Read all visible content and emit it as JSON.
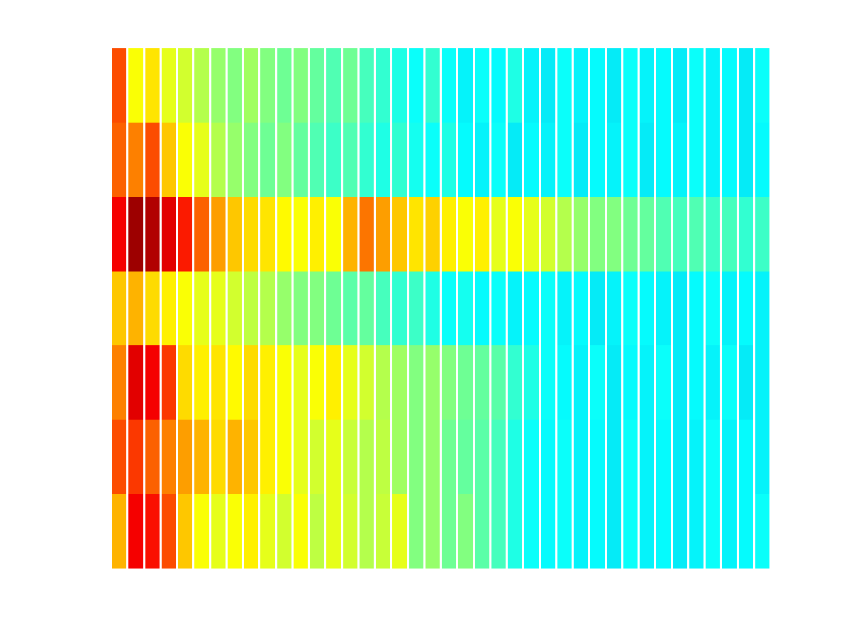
{
  "chart_data": {
    "type": "heatmap",
    "tick_labels": false,
    "grid": false,
    "zlim": [
      0,
      1
    ],
    "cells": [
      [
        0.8,
        0.62,
        0.65,
        0.6,
        0.58,
        0.55,
        0.52,
        0.5,
        0.53,
        0.5,
        0.48,
        0.5,
        0.47,
        0.45,
        0.48,
        0.44,
        0.42,
        0.4,
        0.38,
        0.42,
        0.38,
        0.36,
        0.38,
        0.37,
        0.4,
        0.36,
        0.35,
        0.38,
        0.36,
        0.37,
        0.35,
        0.38,
        0.36,
        0.37,
        0.35,
        0.38,
        0.36,
        0.37,
        0.35,
        0.38
      ],
      [
        0.78,
        0.75,
        0.8,
        0.68,
        0.62,
        0.6,
        0.55,
        0.52,
        0.5,
        0.48,
        0.5,
        0.47,
        0.45,
        0.43,
        0.45,
        0.42,
        0.4,
        0.42,
        0.39,
        0.38,
        0.4,
        0.37,
        0.36,
        0.38,
        0.35,
        0.37,
        0.36,
        0.38,
        0.35,
        0.37,
        0.36,
        0.38,
        0.35,
        0.37,
        0.36,
        0.38,
        0.36,
        0.37,
        0.35,
        0.37
      ],
      [
        0.88,
        0.97,
        0.95,
        0.9,
        0.85,
        0.78,
        0.72,
        0.68,
        0.66,
        0.65,
        0.63,
        0.62,
        0.64,
        0.62,
        0.7,
        0.76,
        0.72,
        0.68,
        0.65,
        0.67,
        0.64,
        0.62,
        0.64,
        0.6,
        0.62,
        0.6,
        0.58,
        0.55,
        0.52,
        0.5,
        0.5,
        0.48,
        0.47,
        0.45,
        0.44,
        0.45,
        0.43,
        0.44,
        0.42,
        0.43
      ],
      [
        0.68,
        0.7,
        0.66,
        0.64,
        0.62,
        0.6,
        0.6,
        0.58,
        0.56,
        0.55,
        0.52,
        0.5,
        0.5,
        0.48,
        0.46,
        0.47,
        0.44,
        0.42,
        0.43,
        0.4,
        0.38,
        0.39,
        0.37,
        0.38,
        0.36,
        0.37,
        0.38,
        0.36,
        0.37,
        0.35,
        0.36,
        0.38,
        0.37,
        0.36,
        0.35,
        0.37,
        0.38,
        0.36,
        0.37,
        0.36
      ],
      [
        0.75,
        0.9,
        0.88,
        0.82,
        0.66,
        0.64,
        0.65,
        0.63,
        0.66,
        0.64,
        0.62,
        0.6,
        0.62,
        0.64,
        0.6,
        0.58,
        0.55,
        0.53,
        0.5,
        0.52,
        0.5,
        0.48,
        0.47,
        0.46,
        0.42,
        0.4,
        0.38,
        0.37,
        0.36,
        0.38,
        0.35,
        0.37,
        0.36,
        0.38,
        0.35,
        0.37,
        0.36,
        0.38,
        0.35,
        0.36
      ],
      [
        0.8,
        0.82,
        0.78,
        0.75,
        0.72,
        0.7,
        0.66,
        0.7,
        0.68,
        0.64,
        0.62,
        0.6,
        0.58,
        0.6,
        0.57,
        0.55,
        0.56,
        0.53,
        0.5,
        0.52,
        0.48,
        0.47,
        0.46,
        0.44,
        0.4,
        0.38,
        0.37,
        0.38,
        0.36,
        0.37,
        0.35,
        0.38,
        0.36,
        0.37,
        0.35,
        0.36,
        0.38,
        0.36,
        0.37,
        0.36
      ],
      [
        0.7,
        0.88,
        0.86,
        0.8,
        0.68,
        0.62,
        0.6,
        0.62,
        0.64,
        0.6,
        0.58,
        0.62,
        0.56,
        0.6,
        0.58,
        0.55,
        0.57,
        0.6,
        0.5,
        0.52,
        0.48,
        0.5,
        0.46,
        0.44,
        0.4,
        0.38,
        0.37,
        0.38,
        0.36,
        0.37,
        0.35,
        0.38,
        0.36,
        0.37,
        0.35,
        0.36,
        0.38,
        0.36,
        0.37,
        0.38
      ]
    ]
  }
}
